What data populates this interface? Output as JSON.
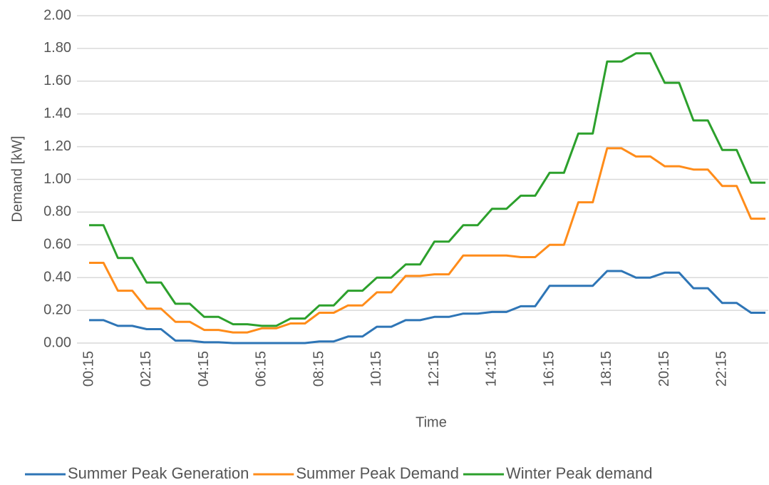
{
  "chart_data": {
    "type": "line",
    "x_label": "Time",
    "y_label": "Demand [kW]",
    "categories": [
      "00:15",
      null,
      null,
      null,
      "02:15",
      null,
      null,
      null,
      "04:15",
      null,
      null,
      null,
      "06:15",
      null,
      null,
      null,
      "08:15",
      null,
      null,
      null,
      "10:15",
      null,
      null,
      null,
      "12:15",
      null,
      null,
      null,
      "14:15",
      null,
      null,
      null,
      "16:15",
      null,
      null,
      null,
      "18:15",
      null,
      null,
      null,
      "20:15",
      null,
      null,
      null,
      "22:15",
      null,
      null,
      null
    ],
    "series": [
      {
        "name": "Summer Peak Generation",
        "color": "#2e75b6",
        "values": [
          0.14,
          0.14,
          0.105,
          0.105,
          0.085,
          0.085,
          0.015,
          0.015,
          0.005,
          0.005,
          0,
          0,
          0,
          0,
          0,
          0,
          0.01,
          0.01,
          0.04,
          0.04,
          0.1,
          0.1,
          0.14,
          0.14,
          0.16,
          0.16,
          0.18,
          0.18,
          0.19,
          0.19,
          0.225,
          0.225,
          0.35,
          0.35,
          0.35,
          0.35,
          0.44,
          0.44,
          0.4,
          0.4,
          0.43,
          0.43,
          0.335,
          0.335,
          0.245,
          0.245,
          0.185,
          0.185
        ]
      },
      {
        "name": "Summer Peak Demand",
        "color": "#ff8c1a",
        "values": [
          0.49,
          0.49,
          0.32,
          0.32,
          0.21,
          0.21,
          0.13,
          0.13,
          0.08,
          0.08,
          0.065,
          0.065,
          0.09,
          0.09,
          0.12,
          0.12,
          0.185,
          0.185,
          0.23,
          0.23,
          0.31,
          0.31,
          0.41,
          0.41,
          0.42,
          0.42,
          0.535,
          0.535,
          0.535,
          0.535,
          0.525,
          0.525,
          0.6,
          0.6,
          0.86,
          0.86,
          1.19,
          1.19,
          1.14,
          1.14,
          1.08,
          1.08,
          1.06,
          1.06,
          0.96,
          0.96,
          0.76,
          0.76
        ]
      },
      {
        "name": "Winter Peak demand",
        "color": "#2ca02c",
        "values": [
          0.72,
          0.72,
          0.52,
          0.52,
          0.37,
          0.37,
          0.24,
          0.24,
          0.16,
          0.16,
          0.115,
          0.115,
          0.105,
          0.105,
          0.15,
          0.15,
          0.23,
          0.23,
          0.32,
          0.32,
          0.4,
          0.4,
          0.48,
          0.48,
          0.62,
          0.62,
          0.72,
          0.72,
          0.82,
          0.82,
          0.9,
          0.9,
          1.04,
          1.04,
          1.28,
          1.28,
          1.72,
          1.72,
          1.77,
          1.77,
          1.59,
          1.59,
          1.36,
          1.36,
          1.18,
          1.18,
          0.98,
          0.98
        ]
      }
    ],
    "ylim": [
      0,
      2
    ],
    "yticks": [
      {
        "value": 0,
        "label": "0.00"
      },
      {
        "value": 0.2,
        "label": "0.20"
      },
      {
        "value": 0.4,
        "label": "0.40"
      },
      {
        "value": 0.6,
        "label": "0.60"
      },
      {
        "value": 0.8,
        "label": "0.80"
      },
      {
        "value": 1,
        "label": "1.00"
      },
      {
        "value": 1.2,
        "label": "1.20"
      },
      {
        "value": 1.4,
        "label": "1.40"
      },
      {
        "value": 1.6,
        "label": "1.60"
      },
      {
        "value": 1.8,
        "label": "1.80"
      },
      {
        "value": 2,
        "label": "2.00"
      }
    ],
    "grid": true,
    "legend": "bottom"
  }
}
